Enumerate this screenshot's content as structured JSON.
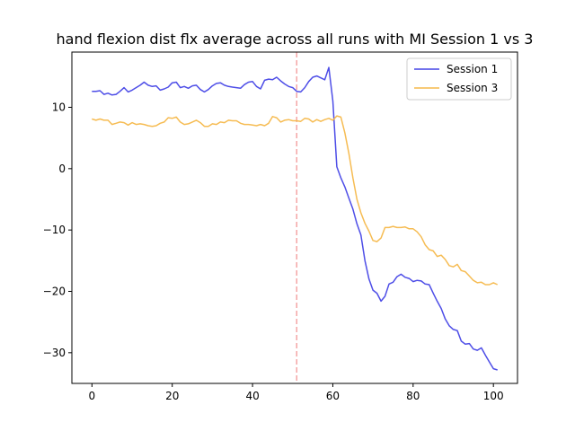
{
  "chart_data": {
    "type": "line",
    "title": "hand flexion dist flx average across all runs with MI Session 1 vs 3",
    "xlabel": "",
    "ylabel": "",
    "xlim": [
      -5,
      106
    ],
    "ylim": [
      -35,
      19
    ],
    "xticks": [
      0,
      20,
      40,
      60,
      80,
      100
    ],
    "yticks": [
      10,
      0,
      -10,
      -20,
      -30
    ],
    "xtick_labels": [
      "0",
      "20",
      "40",
      "60",
      "80",
      "100"
    ],
    "ytick_labels": [
      "10",
      "0",
      "−10",
      "−20",
      "−30"
    ],
    "grid": false,
    "legend_position": "top-right",
    "vline": {
      "x": 51,
      "color": "#f4a6a6",
      "style": "dashed"
    },
    "series": [
      {
        "name": "Session 1",
        "color": "#4444e6",
        "x": [
          0,
          1,
          2,
          3,
          4,
          5,
          6,
          7,
          8,
          9,
          10,
          11,
          12,
          13,
          14,
          15,
          16,
          17,
          18,
          19,
          20,
          21,
          22,
          23,
          24,
          25,
          26,
          27,
          28,
          29,
          30,
          31,
          32,
          33,
          34,
          35,
          36,
          37,
          38,
          39,
          40,
          41,
          42,
          43,
          44,
          45,
          46,
          47,
          48,
          49,
          50,
          51,
          52,
          53,
          54,
          55,
          56,
          57,
          58,
          59,
          60,
          61,
          62,
          63,
          64,
          65,
          66,
          67,
          68,
          69,
          70,
          71,
          72,
          73,
          74,
          75,
          76,
          77,
          78,
          79,
          80,
          81,
          82,
          83,
          84,
          85,
          86,
          87,
          88,
          89,
          90,
          91,
          92,
          93,
          94,
          95,
          96,
          97,
          98,
          99,
          100,
          101
        ],
        "values": [
          12.6,
          12.6,
          12.7,
          12.1,
          12.3,
          12.0,
          12.1,
          12.6,
          13.2,
          12.5,
          12.8,
          13.2,
          13.6,
          14.1,
          13.6,
          13.4,
          13.5,
          12.8,
          13.0,
          13.3,
          14.0,
          14.1,
          13.2,
          13.4,
          13.1,
          13.5,
          13.6,
          12.9,
          12.5,
          12.9,
          13.5,
          13.9,
          14.0,
          13.6,
          13.4,
          13.3,
          13.2,
          13.1,
          13.7,
          14.1,
          14.2,
          13.4,
          13.0,
          14.4,
          14.6,
          14.5,
          14.9,
          14.3,
          13.8,
          13.4,
          13.2,
          12.6,
          12.5,
          13.2,
          14.2,
          14.9,
          15.1,
          14.8,
          14.5,
          16.5,
          11.0,
          0.3,
          -1.5,
          -3.0,
          -4.8,
          -6.6,
          -9.0,
          -10.8,
          -15.0,
          -18.0,
          -19.8,
          -20.3,
          -21.6,
          -20.8,
          -18.8,
          -18.5,
          -17.6,
          -17.2,
          -17.7,
          -17.9,
          -18.4,
          -18.2,
          -18.3,
          -18.8,
          -18.9,
          -20.3,
          -21.6,
          -22.8,
          -24.5,
          -25.6,
          -26.2,
          -26.4,
          -28.1,
          -28.6,
          -28.5,
          -29.4,
          -29.6,
          -29.2,
          -30.4,
          -31.5,
          -32.6,
          -32.8
        ]
      },
      {
        "name": "Session 3",
        "color": "#f6b84a",
        "x": [
          0,
          1,
          2,
          3,
          4,
          5,
          6,
          7,
          8,
          9,
          10,
          11,
          12,
          13,
          14,
          15,
          16,
          17,
          18,
          19,
          20,
          21,
          22,
          23,
          24,
          25,
          26,
          27,
          28,
          29,
          30,
          31,
          32,
          33,
          34,
          35,
          36,
          37,
          38,
          39,
          40,
          41,
          42,
          43,
          44,
          45,
          46,
          47,
          48,
          49,
          50,
          51,
          52,
          53,
          54,
          55,
          56,
          57,
          58,
          59,
          60,
          61,
          62,
          63,
          64,
          65,
          66,
          67,
          68,
          69,
          70,
          71,
          72,
          73,
          74,
          75,
          76,
          77,
          78,
          79,
          80,
          81,
          82,
          83,
          84,
          85,
          86,
          87,
          88,
          89,
          90,
          91,
          92,
          93,
          94,
          95,
          96,
          97,
          98,
          99,
          100,
          101
        ],
        "values": [
          8.1,
          7.9,
          8.1,
          7.9,
          7.9,
          7.2,
          7.4,
          7.6,
          7.5,
          7.1,
          7.5,
          7.2,
          7.3,
          7.2,
          7.0,
          6.9,
          7.0,
          7.4,
          7.6,
          8.3,
          8.2,
          8.4,
          7.6,
          7.2,
          7.3,
          7.6,
          7.9,
          7.5,
          6.9,
          6.9,
          7.3,
          7.2,
          7.6,
          7.5,
          7.9,
          7.8,
          7.8,
          7.4,
          7.2,
          7.2,
          7.1,
          7.0,
          7.2,
          7.0,
          7.4,
          8.5,
          8.3,
          7.6,
          7.9,
          8.0,
          7.8,
          7.8,
          7.7,
          8.2,
          8.1,
          7.6,
          8.0,
          7.7,
          8.0,
          8.2,
          7.9,
          8.6,
          8.4,
          5.8,
          2.5,
          -1.5,
          -5.0,
          -7.2,
          -8.9,
          -10.2,
          -11.7,
          -11.9,
          -11.3,
          -9.6,
          -9.6,
          -9.4,
          -9.6,
          -9.6,
          -9.5,
          -9.8,
          -9.8,
          -10.3,
          -11.1,
          -12.4,
          -13.2,
          -13.4,
          -14.3,
          -14.1,
          -14.8,
          -15.8,
          -16.0,
          -15.6,
          -16.6,
          -16.8,
          -17.5,
          -18.2,
          -18.6,
          -18.5,
          -18.9,
          -18.9,
          -18.6,
          -18.9
        ]
      }
    ]
  }
}
